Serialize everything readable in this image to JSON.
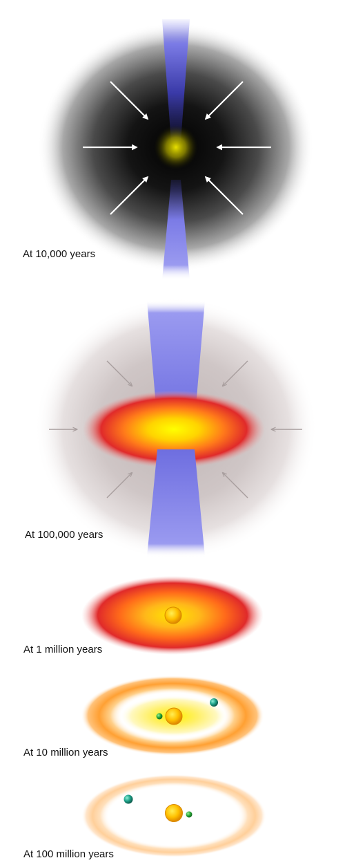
{
  "stages": [
    {
      "id": "10k",
      "label": "At 10,000 years"
    },
    {
      "id": "100k",
      "label": "At 100,000 years"
    },
    {
      "id": "1m",
      "label": "At 1 million years"
    },
    {
      "id": "10m",
      "label": "At 10 million years"
    },
    {
      "id": "100m",
      "label": "At 100 million years"
    }
  ],
  "colors": {
    "jet": "#7b7be6",
    "jet_dark": "#2a2a8a",
    "cloud_dark": "#1a1a1a",
    "cloud_light": "#c9bfbf",
    "disk_outer": "#e02a2a",
    "disk_mid": "#ff8c1a",
    "disk_core": "#fff200",
    "ring_orange": "#ffa733",
    "ring_pale": "#ffd9a8",
    "star": "#ffb000",
    "planet_teal": "#1fa38a",
    "planet_green": "#2aa83a",
    "arrow_white": "#ffffff",
    "arrow_grey": "#a89e9e"
  },
  "icons": [
    "infall-arrow",
    "bipolar-jet",
    "protostar",
    "planet"
  ]
}
